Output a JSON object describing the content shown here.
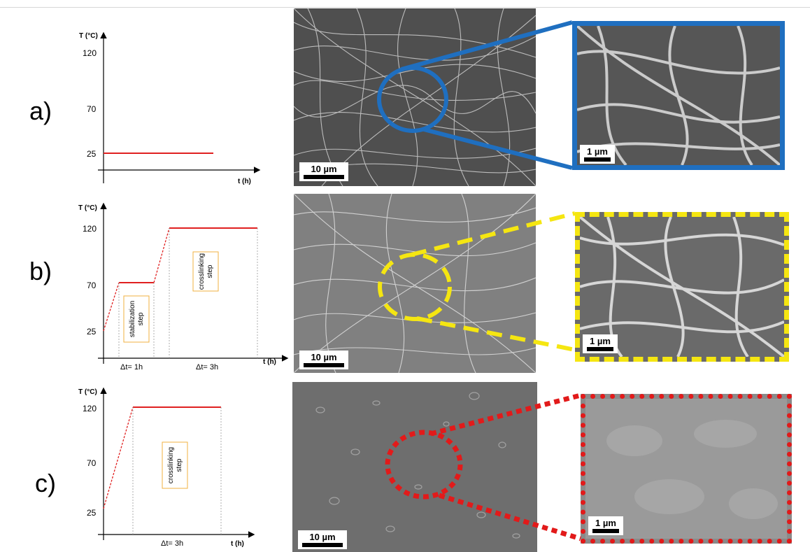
{
  "rows": [
    {
      "label": "a)",
      "y_axis_label": "T (°C)",
      "x_axis_label": "t (h)",
      "y_ticks": [
        "120",
        "70",
        "25"
      ],
      "plateau_temperature": 25,
      "steps": [],
      "durations": [],
      "sem_scale": "10 µm",
      "zoom_scale": "1 µm",
      "zoom_color": "#1f6fc0",
      "zoom_style": "solid"
    },
    {
      "label": "b)",
      "y_axis_label": "T (°C)",
      "x_axis_label": "t (h)",
      "y_ticks": [
        "120",
        "70",
        "25"
      ],
      "steps": [
        {
          "line1": "stabilization",
          "line2": "step"
        },
        {
          "line1": "crosslinking",
          "line2": "step"
        }
      ],
      "durations": [
        "Δt= 1h",
        "Δt= 3h"
      ],
      "sem_scale": "10 µm",
      "zoom_scale": "1 µm",
      "zoom_color": "#f5e611",
      "zoom_style": "dashed"
    },
    {
      "label": "c)",
      "y_axis_label": "T (°C)",
      "x_axis_label": "t (h)",
      "y_ticks": [
        "120",
        "70",
        "25"
      ],
      "steps": [
        {
          "line1": "crosslinking",
          "line2": "step"
        }
      ],
      "durations": [
        "Δt= 3h"
      ],
      "sem_scale": "10 µm",
      "zoom_scale": "1 µm",
      "zoom_color": "#e21a1a",
      "zoom_style": "dotted"
    }
  ],
  "colors": {
    "profile_line": "#e02020",
    "step_box_border": "#f0b040",
    "axis": "#000000"
  }
}
